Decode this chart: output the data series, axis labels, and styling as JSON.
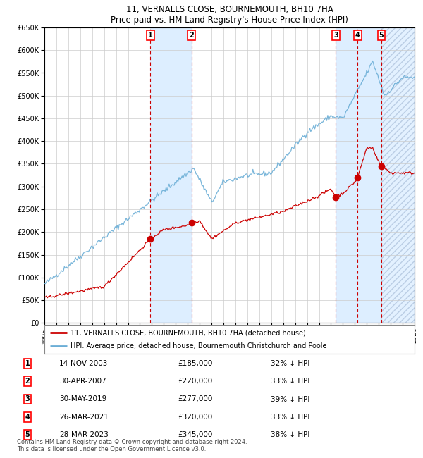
{
  "title_line1": "11, VERNALLS CLOSE, BOURNEMOUTH, BH10 7HA",
  "title_line2": "Price paid vs. HM Land Registry's House Price Index (HPI)",
  "legend_line1": "11, VERNALLS CLOSE, BOURNEMOUTH, BH10 7HA (detached house)",
  "legend_line2": "HPI: Average price, detached house, Bournemouth Christchurch and Poole",
  "footnote1": "Contains HM Land Registry data © Crown copyright and database right 2024.",
  "footnote2": "This data is licensed under the Open Government Licence v3.0.",
  "sales": [
    {
      "num": 1,
      "date": "14-NOV-2003",
      "price": 185000,
      "pct": "32%",
      "x_year": 2003.87
    },
    {
      "num": 2,
      "date": "30-APR-2007",
      "price": 220000,
      "pct": "33%",
      "x_year": 2007.33
    },
    {
      "num": 3,
      "date": "30-MAY-2019",
      "price": 277000,
      "pct": "39%",
      "x_year": 2019.41
    },
    {
      "num": 4,
      "date": "26-MAR-2021",
      "price": 320000,
      "pct": "33%",
      "x_year": 2021.23
    },
    {
      "num": 5,
      "date": "28-MAR-2023",
      "price": 345000,
      "pct": "38%",
      "x_year": 2023.23
    }
  ],
  "hpi_color": "#6baed6",
  "price_color": "#cc0000",
  "sale_dot_color": "#cc0000",
  "vline_color": "#cc0000",
  "shade_color": "#ddeeff",
  "grid_color": "#cccccc",
  "background_color": "#ffffff",
  "xmin": 1995,
  "xmax": 2026,
  "ymin": 0,
  "ymax": 650000,
  "ytick_step": 50000
}
